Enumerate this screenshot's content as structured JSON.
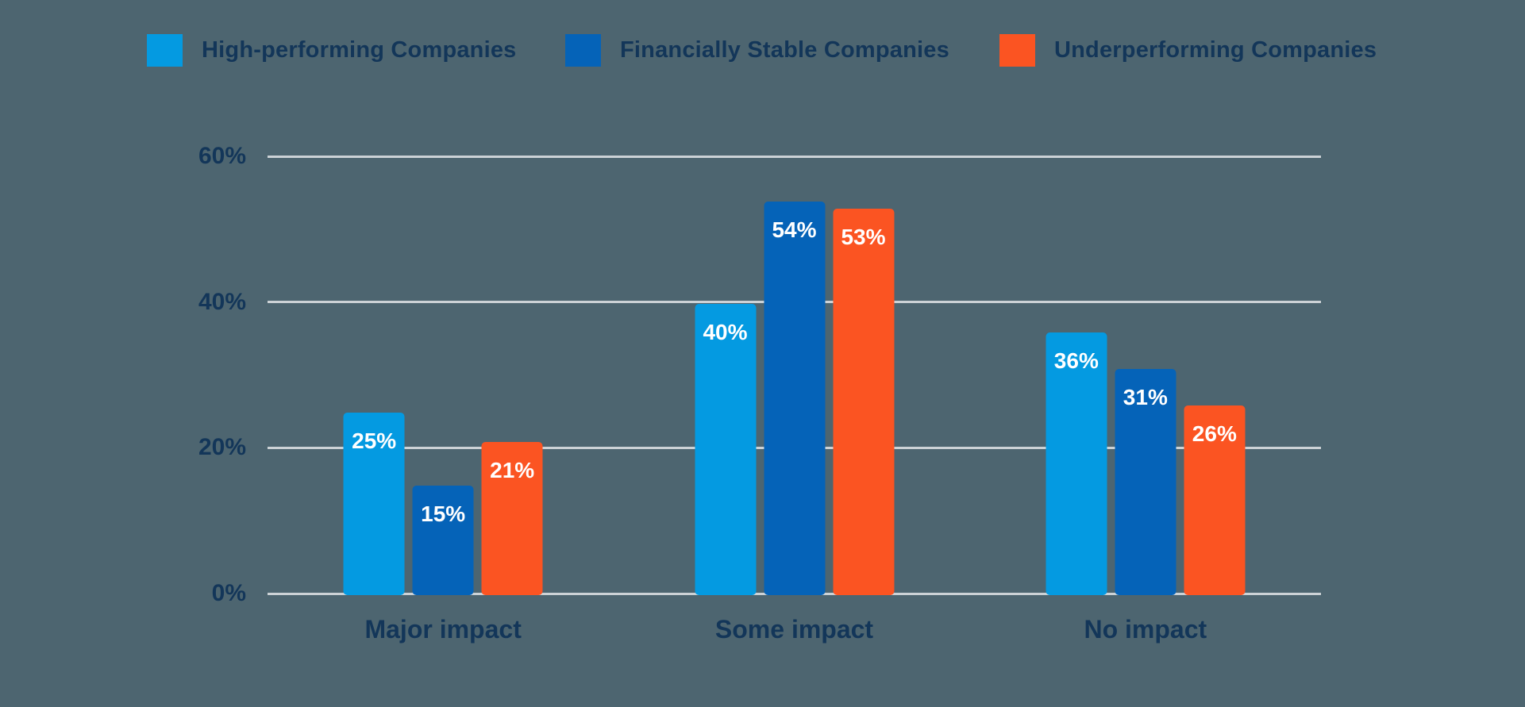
{
  "colors": {
    "background": "#4d6570",
    "text": "#133659",
    "gridline": "#ccd2d6",
    "bar_label": "#ffffff",
    "light_blue": "#049ae1",
    "dark_blue": "#0563b8",
    "orange": "#fb5422"
  },
  "legend": {
    "items": [
      {
        "label": "High-performing Companies",
        "color": "#049ae1",
        "swatch_icon": "square-swatch-icon"
      },
      {
        "label": "Financially Stable Companies",
        "color": "#0563b8",
        "swatch_icon": "square-swatch-icon"
      },
      {
        "label": "Underperforming Companies",
        "color": "#fb5422",
        "swatch_icon": "square-swatch-icon"
      }
    ]
  },
  "chart_data": {
    "type": "bar",
    "title": "",
    "xlabel": "",
    "ylabel": "",
    "categories": [
      "Major impact",
      "Some impact",
      "No impact"
    ],
    "series": [
      {
        "name": "High-performing Companies",
        "color": "#049ae1",
        "values": [
          25,
          40,
          36
        ]
      },
      {
        "name": "Financially Stable Companies",
        "color": "#0563b8",
        "values": [
          15,
          54,
          31
        ]
      },
      {
        "name": "Underperforming Companies",
        "color": "#fb5422",
        "values": [
          21,
          53,
          26
        ]
      }
    ],
    "value_labels": [
      [
        "25%",
        "40%",
        "36%"
      ],
      [
        "15%",
        "54%",
        "31%"
      ],
      [
        "21%",
        "53%",
        "26%"
      ]
    ],
    "yticks": [
      0,
      20,
      40,
      60
    ],
    "ytick_labels": [
      "0%",
      "20%",
      "40%",
      "60%"
    ],
    "ylim": [
      0,
      60
    ],
    "grid": "horizontal",
    "legend_position": "top"
  }
}
